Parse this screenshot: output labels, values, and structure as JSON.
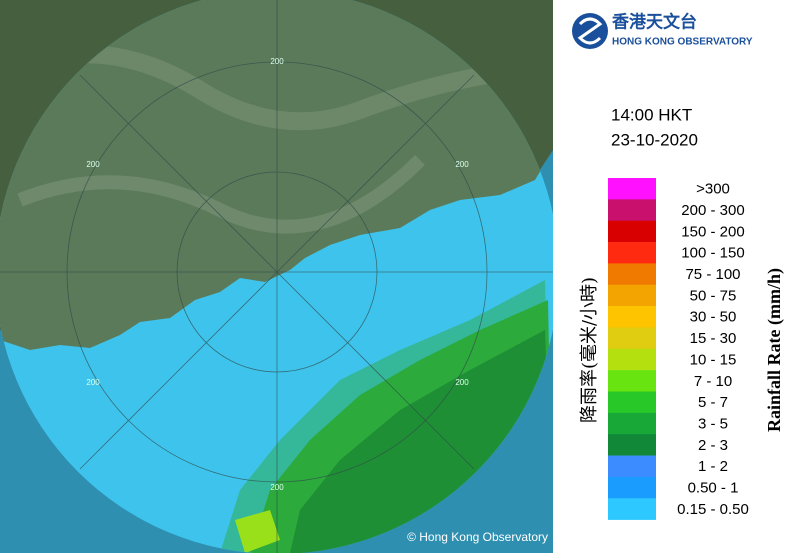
{
  "logo": {
    "chinese": "香港天文台",
    "english": "HONG KONG OBSERVATORY"
  },
  "time": "14:00 HKT",
  "date": "23-10-2020",
  "legend": {
    "title_chinese": "降雨率(毫米/小時)",
    "title_english": "Rainfall Rate (mm/h)",
    "items": [
      {
        "label": ">300",
        "color": "#ff10ff"
      },
      {
        "label": "200 - 300",
        "color": "#c8106c"
      },
      {
        "label": "150 - 200",
        "color": "#d80000"
      },
      {
        "label": "100 - 150",
        "color": "#ff2a10"
      },
      {
        "label": "75 - 100",
        "color": "#f07a00"
      },
      {
        "label": "50 - 75",
        "color": "#f4a400"
      },
      {
        "label": "30 - 50",
        "color": "#ffc400"
      },
      {
        "label": "15 - 30",
        "color": "#e0cc10"
      },
      {
        "label": "10 - 15",
        "color": "#b4e010"
      },
      {
        "label": "7 - 10",
        "color": "#68e410"
      },
      {
        "label": "5 - 7",
        "color": "#28c828"
      },
      {
        "label": "3 - 5",
        "color": "#18a838"
      },
      {
        "label": "2 - 3",
        "color": "#108838"
      },
      {
        "label": "1 - 2",
        "color": "#3c8cff"
      },
      {
        "label": "0.50 - 1",
        "color": "#1a9cff"
      },
      {
        "label": "0.15 - 0.50",
        "color": "#2cc8ff"
      }
    ]
  },
  "map": {
    "ring_labels": [
      "200",
      "200",
      "200",
      "200",
      "200",
      "200"
    ],
    "copyright": "© Hong Kong Observatory"
  }
}
